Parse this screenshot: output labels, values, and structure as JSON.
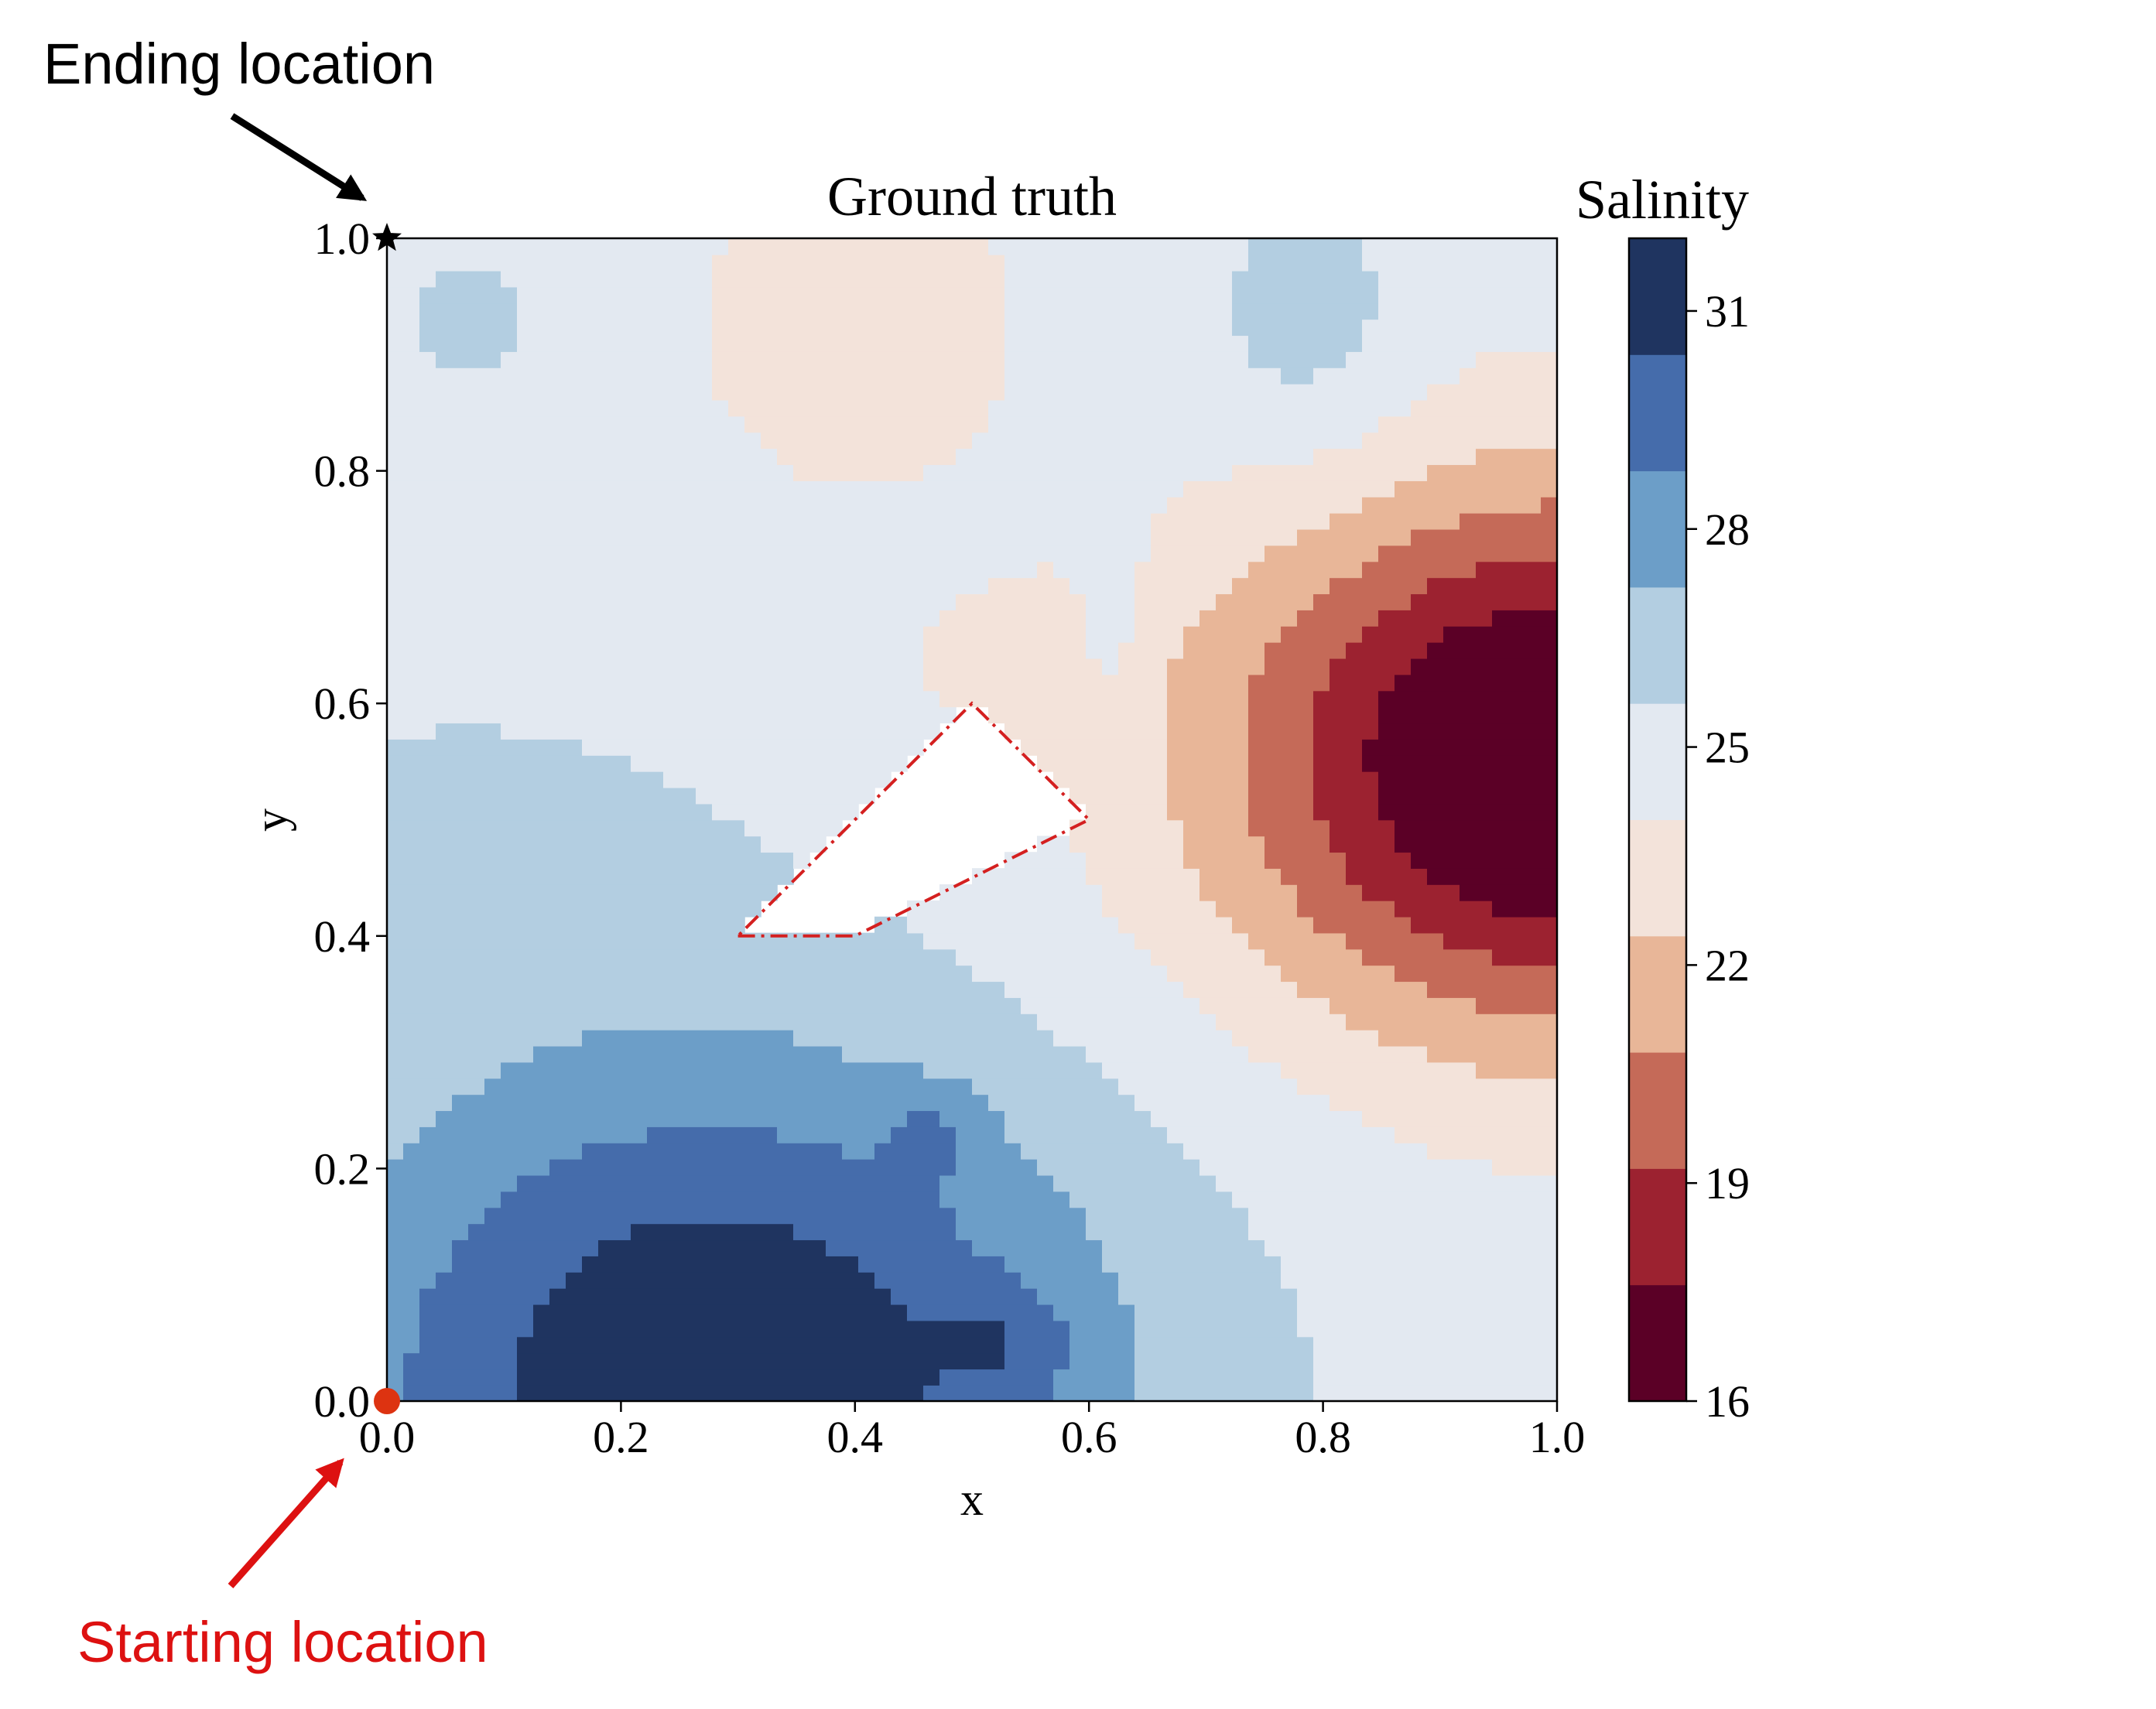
{
  "chart_data": {
    "type": "heatmap",
    "title": "Ground truth",
    "xlabel": "x",
    "ylabel": "y",
    "xlim": [
      0.0,
      1.0
    ],
    "ylim": [
      0.0,
      1.0
    ],
    "xticks": [
      "0.0",
      "0.2",
      "0.4",
      "0.6",
      "0.8",
      "1.0"
    ],
    "yticks": [
      "0.0",
      "0.2",
      "0.4",
      "0.6",
      "0.8",
      "1.0"
    ],
    "colorbar": {
      "label": "Salinity",
      "range": [
        16,
        32
      ],
      "ticks": [
        31,
        28,
        25,
        22,
        19,
        16
      ],
      "tick_labels": [
        "31",
        "28",
        "25",
        "22",
        "19",
        "16"
      ],
      "levels": 10,
      "colormap": [
        "#5b0026",
        "#9c2230",
        "#c56a58",
        "#e8b698",
        "#f3e3da",
        "#e3e9f1",
        "#b3cee1",
        "#6c9ec8",
        "#456cab",
        "#1f3460"
      ]
    },
    "obstacle_polygon": {
      "vertices": [
        [
          0.3,
          0.4
        ],
        [
          0.4,
          0.4
        ],
        [
          0.6,
          0.5
        ],
        [
          0.5,
          0.6
        ]
      ],
      "color": "#d42020",
      "style": "dash-dot"
    },
    "markers": {
      "start": {
        "x": 0.0,
        "y": 0.0,
        "color": "#dd3311",
        "shape": "circle"
      },
      "end": {
        "x": 0.0,
        "y": 1.0,
        "color": "#000000",
        "shape": "star"
      }
    },
    "annotations": [
      {
        "text": "Ending location",
        "color": "#000000"
      },
      {
        "text": "Starting location",
        "color": "#dd1111"
      }
    ]
  }
}
